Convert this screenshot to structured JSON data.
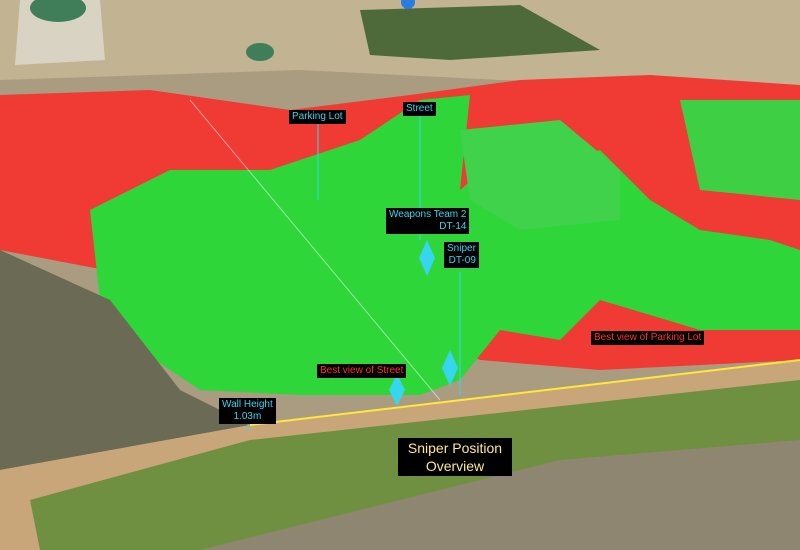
{
  "markers": [
    {
      "lines": [
        "Parking Lot"
      ]
    },
    {
      "lines": [
        "Street"
      ]
    },
    {
      "lines": [
        "Weapons Team 2",
        "DT-14"
      ]
    },
    {
      "lines": [
        "Sniper",
        "DT-09"
      ]
    },
    {
      "lines": [
        "Best view of Street"
      ]
    },
    {
      "lines": [
        "Best view of Parking Lot"
      ]
    },
    {
      "lines": [
        "Wall Height",
        "1.03m"
      ]
    }
  ],
  "caption": {
    "lines": [
      "Sniper Position",
      "Overview"
    ]
  }
}
